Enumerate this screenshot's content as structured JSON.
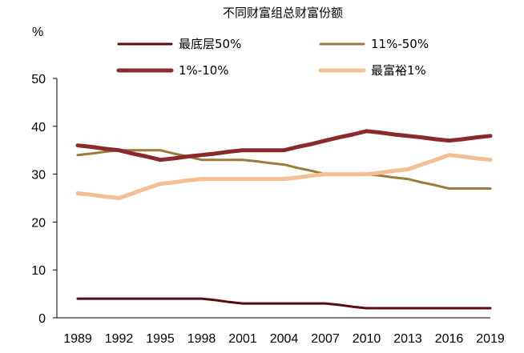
{
  "chart_data": {
    "type": "line",
    "title": "不同财富组总财富份额",
    "ylabel": "%",
    "xlabel": "",
    "ylim": [
      0,
      50
    ],
    "yticks": [
      0,
      10,
      20,
      30,
      40,
      50
    ],
    "x": [
      1989,
      1990,
      1991,
      1992,
      1993,
      1994,
      1995,
      1996,
      1997,
      1998,
      1999,
      2000,
      2001,
      2002,
      2003,
      2004,
      2005,
      2006,
      2007,
      2008,
      2009,
      2010,
      2011,
      2012,
      2013,
      2014,
      2015,
      2016,
      2017,
      2018,
      2019
    ],
    "xticks": [
      1989,
      1992,
      1995,
      1998,
      2001,
      2004,
      2007,
      2010,
      2013,
      2016,
      2019
    ],
    "grid": false,
    "legend_position": "top",
    "series": [
      {
        "name": "最底层50%",
        "color": "#5c0a12",
        "width": 3,
        "values": [
          4,
          4,
          4,
          4,
          4,
          4,
          4,
          4,
          4,
          4,
          3.7,
          3.3,
          3,
          3,
          3,
          3,
          3,
          3,
          3,
          2.7,
          2.3,
          2,
          2,
          2,
          2,
          2,
          2,
          2,
          2,
          2,
          2
        ]
      },
      {
        "name": "11%-50%",
        "color": "#9c7a3c",
        "width": 3,
        "values": [
          34,
          34.3,
          34.7,
          35,
          35,
          35,
          35,
          34.3,
          33.7,
          33,
          33,
          33,
          33,
          32.7,
          32.3,
          32,
          31.3,
          30.7,
          30,
          30,
          30,
          30,
          29.7,
          29.3,
          29,
          28.3,
          27.7,
          27,
          27,
          27,
          27
        ]
      },
      {
        "name": "1%-10%",
        "color": "#8b2a2d",
        "width": 5,
        "values": [
          36,
          35.7,
          35.3,
          35,
          34.3,
          33.7,
          33,
          33.3,
          33.7,
          34,
          34.3,
          34.7,
          35,
          35,
          35,
          35,
          35.7,
          36.3,
          37,
          37.7,
          38.3,
          39,
          38.7,
          38.3,
          38,
          37.7,
          37.3,
          37,
          37.3,
          37.7,
          38
        ]
      },
      {
        "name": "最富裕1%",
        "color": "#f4bf92",
        "width": 5,
        "values": [
          26,
          25.7,
          25.3,
          25,
          26,
          27,
          28,
          28.3,
          28.7,
          29,
          29,
          29,
          29,
          29,
          29,
          29,
          29.3,
          29.7,
          30,
          30,
          30,
          30,
          30.3,
          30.7,
          31,
          32,
          33,
          34,
          33.7,
          33.3,
          33
        ]
      }
    ]
  }
}
